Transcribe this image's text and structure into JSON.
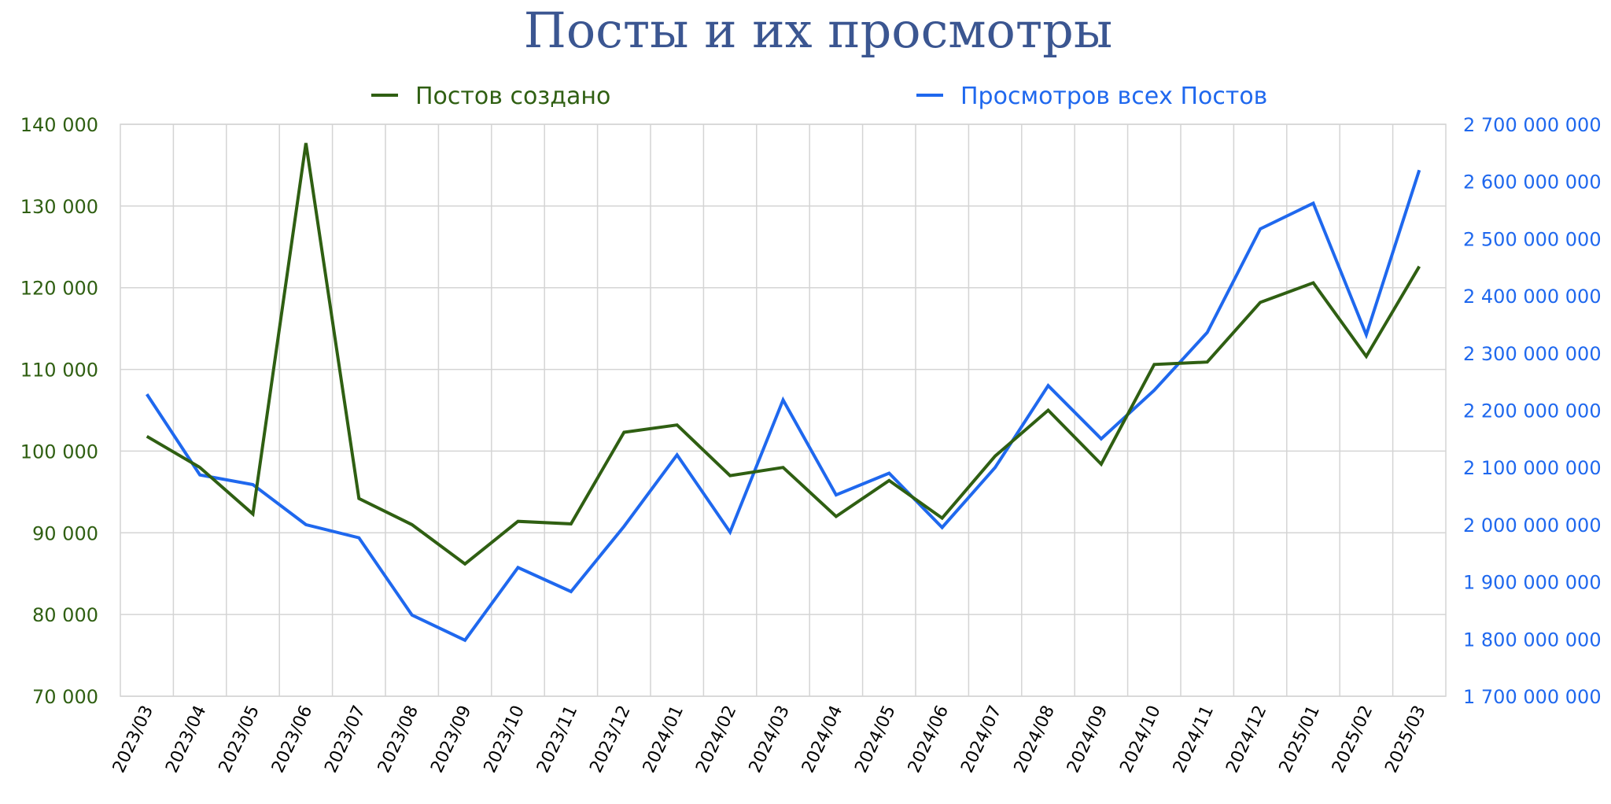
{
  "chart_data": {
    "type": "line",
    "title": "Посты и их просмотры",
    "colors": {
      "title": "#3b5691",
      "posts": "#2f5f12",
      "views": "#1f68ee",
      "grid": "#d4d4d4",
      "x_tick": "#000000"
    },
    "legend": {
      "placement": "top",
      "entries": [
        "Постов создано",
        "Просмотров всех Постов"
      ]
    },
    "grid": true,
    "categories": [
      "2023/03",
      "2023/04",
      "2023/05",
      "2023/06",
      "2023/07",
      "2023/08",
      "2023/09",
      "2023/10",
      "2023/11",
      "2023/12",
      "2024/01",
      "2024/02",
      "2024/03",
      "2024/04",
      "2024/05",
      "2024/06",
      "2024/07",
      "2024/08",
      "2024/09",
      "2024/10",
      "2024/11",
      "2024/12",
      "2025/01",
      "2025/02",
      "2025/03"
    ],
    "y_left": {
      "ylim": [
        70000,
        140000
      ],
      "ticks": [
        70000,
        80000,
        90000,
        100000,
        110000,
        120000,
        130000,
        140000
      ],
      "tick_labels": [
        "70 000",
        "80 000",
        "90 000",
        "100 000",
        "110 000",
        "120 000",
        "130 000",
        "140 000"
      ]
    },
    "y_right": {
      "ylim": [
        1700000000,
        2700000000
      ],
      "ticks": [
        1700000000,
        1800000000,
        1900000000,
        2000000000,
        2100000000,
        2200000000,
        2300000000,
        2400000000,
        2500000000,
        2600000000,
        2700000000
      ],
      "tick_labels": [
        "1 700 000 000",
        "1 800 000 000",
        "1 900 000 000",
        "2 000 000 000",
        "2 100 000 000",
        "2 200 000 000",
        "2 300 000 000",
        "2 400 000 000",
        "2 500 000 000",
        "2 600 000 000",
        "2 700 000 000"
      ]
    },
    "series": [
      {
        "name": "Постов создано",
        "axis": "left",
        "values": [
          101800,
          98000,
          92300,
          137700,
          94200,
          91000,
          86200,
          91400,
          91100,
          102300,
          103200,
          97000,
          98000,
          92000,
          96400,
          91800,
          99400,
          105000,
          98400,
          110600,
          110900,
          118200,
          120600,
          111600,
          122600
        ]
      },
      {
        "name": "Просмотров всех Постов",
        "axis": "right",
        "values": [
          2228000000,
          2087000000,
          2070000000,
          2000000000,
          1977000000,
          1842000000,
          1798000000,
          1925000000,
          1883000000,
          1997000000,
          2122000000,
          1987000000,
          2218000000,
          2052000000,
          2090000000,
          1995000000,
          2100000000,
          2243000000,
          2150000000,
          2235000000,
          2336000000,
          2517000000,
          2562000000,
          2332000000,
          2620000000
        ]
      }
    ]
  }
}
